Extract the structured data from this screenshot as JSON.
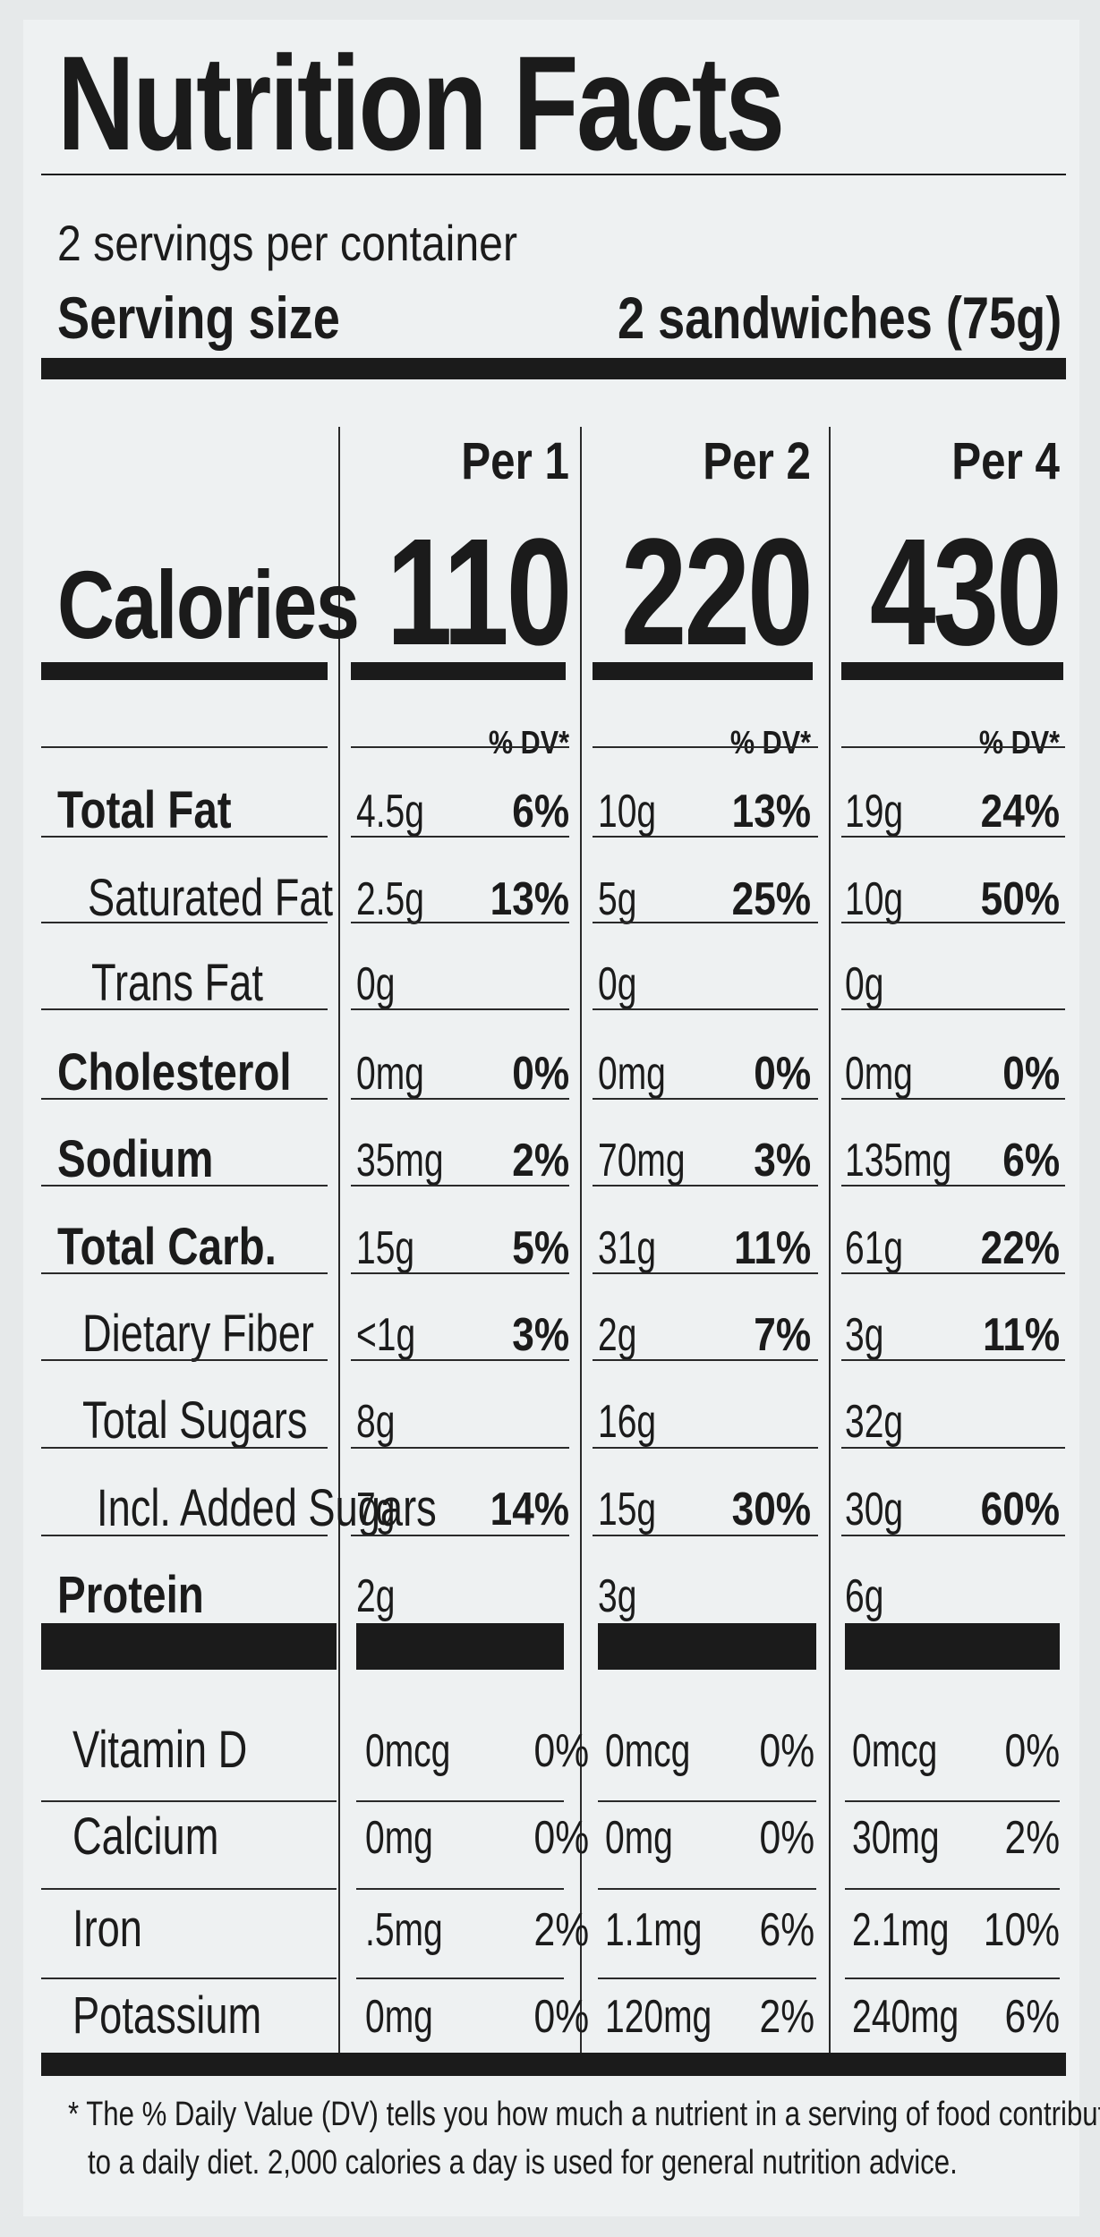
{
  "title": "Nutrition Facts",
  "servings_per_container": "2 servings per container",
  "serving_size_label": "Serving size",
  "serving_size_value": "2 sandwiches (75g)",
  "calories_label": "Calories",
  "columns": [
    {
      "header": "Per 1",
      "calories": "110"
    },
    {
      "header": "Per 2",
      "calories": "220"
    },
    {
      "header": "Per 4",
      "calories": "430"
    }
  ],
  "dv_header": "% DV*",
  "nutrients": [
    {
      "name": "Total Fat",
      "bold": true,
      "values": [
        [
          "4.5g",
          "6%"
        ],
        [
          "10g",
          "13%"
        ],
        [
          "19g",
          "24%"
        ]
      ]
    },
    {
      "name": "Saturated Fat",
      "bold": false,
      "values": [
        [
          "2.5g",
          "13%"
        ],
        [
          "5g",
          "25%"
        ],
        [
          "10g",
          "50%"
        ]
      ]
    },
    {
      "name": "Trans Fat",
      "bold": false,
      "values": [
        [
          "0g",
          ""
        ],
        [
          "0g",
          ""
        ],
        [
          "0g",
          ""
        ]
      ]
    },
    {
      "name": "Cholesterol",
      "bold": true,
      "values": [
        [
          "0mg",
          "0%"
        ],
        [
          "0mg",
          "0%"
        ],
        [
          "0mg",
          "0%"
        ]
      ]
    },
    {
      "name": "Sodium",
      "bold": true,
      "values": [
        [
          "35mg",
          "2%"
        ],
        [
          "70mg",
          "3%"
        ],
        [
          "135mg",
          "6%"
        ]
      ]
    },
    {
      "name": "Total Carb.",
      "bold": true,
      "values": [
        [
          "15g",
          "5%"
        ],
        [
          "31g",
          "11%"
        ],
        [
          "61g",
          "22%"
        ]
      ]
    },
    {
      "name": "Dietary Fiber",
      "bold": false,
      "values": [
        [
          "<1g",
          "3%"
        ],
        [
          "2g",
          "7%"
        ],
        [
          "3g",
          "11%"
        ]
      ]
    },
    {
      "name": "Total Sugars",
      "bold": false,
      "values": [
        [
          "8g",
          ""
        ],
        [
          "16g",
          ""
        ],
        [
          "32g",
          ""
        ]
      ]
    },
    {
      "name": "Incl. Added Sugars",
      "bold": false,
      "values": [
        [
          "7g",
          "14%"
        ],
        [
          "15g",
          "30%"
        ],
        [
          "30g",
          "60%"
        ]
      ]
    },
    {
      "name": "Protein",
      "bold": true,
      "values": [
        [
          "2g",
          ""
        ],
        [
          "3g",
          ""
        ],
        [
          "6g",
          ""
        ]
      ]
    }
  ],
  "vitamins": [
    {
      "name": "Vitamin D",
      "values": [
        [
          "0mcg",
          "0%"
        ],
        [
          "0mcg",
          "0%"
        ],
        [
          "0mcg",
          "0%"
        ]
      ]
    },
    {
      "name": "Calcium",
      "values": [
        [
          "0mg",
          "0%"
        ],
        [
          "0mg",
          "0%"
        ],
        [
          "30mg",
          "2%"
        ]
      ]
    },
    {
      "name": "Iron",
      "values": [
        [
          ".5mg",
          "2%"
        ],
        [
          "1.1mg",
          "6%"
        ],
        [
          "2.1mg",
          "10%"
        ]
      ]
    },
    {
      "name": "Potassium",
      "values": [
        [
          "0mg",
          "0%"
        ],
        [
          "120mg",
          "2%"
        ],
        [
          "240mg",
          "6%"
        ]
      ]
    }
  ],
  "footnote_line1": "* The % Daily Value (DV) tells you how much a nutrient in a serving of food contributes",
  "footnote_line2": "to a daily diet. 2,000 calories a day is used for general nutrition advice."
}
